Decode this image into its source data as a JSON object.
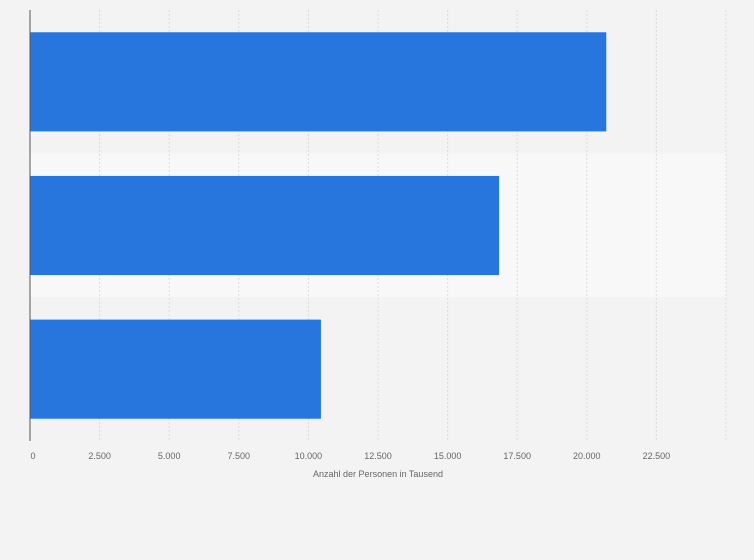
{
  "chart_data": {
    "type": "bar",
    "orientation": "horizontal",
    "categories": [
      "",
      "",
      ""
    ],
    "values": [
      20700,
      16850,
      10450
    ],
    "xlabel": "Anzahl der Personen in Tausend",
    "ylabel": "",
    "xlim": [
      0,
      25000
    ],
    "xticks": [
      "0",
      "2.500",
      "5.000",
      "7.500",
      "10.000",
      "12.500",
      "15.000",
      "17.500",
      "20.000",
      "22.500"
    ],
    "grid": true,
    "legend": "none",
    "bar_color": "#2676dd",
    "band_colors": [
      "#f3f3f3",
      "#f8f8f8"
    ]
  }
}
